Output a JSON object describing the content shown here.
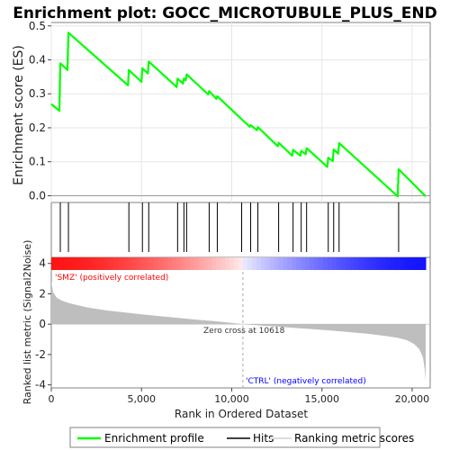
{
  "chart_data": {
    "type": "line",
    "title": "Enrichment plot: GOCC_MICROTUBULE_PLUS_END",
    "es_ylabel": "Enrichment score (ES)",
    "metric_ylabel": "Ranked list metric (Signal2Noise)",
    "xlabel": "Rank in Ordered Dataset",
    "xlim": [
      0,
      21000
    ],
    "es_ylim": [
      -0.02,
      0.51
    ],
    "metric_ylim": [
      -4.2,
      4.4
    ],
    "x_ticks": [
      "0",
      "5,000",
      "10,000",
      "15,000",
      "20,000"
    ],
    "x_tick_values": [
      0,
      5000,
      10000,
      15000,
      20000
    ],
    "es_ticks": [
      "0.0",
      "0.1",
      "0.2",
      "0.3",
      "0.4",
      "0.5"
    ],
    "es_tick_values": [
      0.0,
      0.1,
      0.2,
      0.3,
      0.4,
      0.5
    ],
    "metric_ticks": [
      "-4",
      "-2",
      "0",
      "2",
      "4"
    ],
    "metric_tick_values": [
      -4,
      -2,
      0,
      2,
      4
    ],
    "es_profile": {
      "x": [
        0,
        450,
        500,
        900,
        950,
        4250,
        4300,
        5000,
        5050,
        5350,
        5400,
        6950,
        7000,
        7300,
        7350,
        7450,
        7500,
        8700,
        8750,
        9150,
        9200,
        10550,
        11000,
        11050,
        11400,
        11450,
        12550,
        12600,
        13350,
        13400,
        13800,
        13850,
        14100,
        14150,
        15300,
        15350,
        15600,
        15650,
        15900,
        15950,
        19200,
        19250,
        20750
      ],
      "y": [
        0.27,
        0.25,
        0.39,
        0.37,
        0.48,
        0.325,
        0.37,
        0.335,
        0.375,
        0.36,
        0.395,
        0.32,
        0.345,
        0.33,
        0.345,
        0.34,
        0.357,
        0.298,
        0.308,
        0.285,
        0.293,
        0.225,
        0.203,
        0.208,
        0.193,
        0.202,
        0.146,
        0.156,
        0.118,
        0.135,
        0.118,
        0.132,
        0.122,
        0.14,
        0.085,
        0.112,
        0.102,
        0.136,
        0.124,
        0.155,
        -0.002,
        0.078,
        -0.002
      ]
    },
    "hits": [
      500,
      950,
      4300,
      5050,
      5400,
      7000,
      7350,
      7500,
      8750,
      9200,
      10550,
      11050,
      11450,
      12600,
      13400,
      13850,
      14150,
      15350,
      15650,
      15950,
      19250
    ],
    "metric_profile": {
      "x": [
        0,
        100,
        300,
        600,
        1000,
        2000,
        3000,
        4000,
        5000,
        6000,
        7000,
        8000,
        9000,
        10000,
        10618,
        11500,
        12500,
        13500,
        14500,
        15500,
        16500,
        17500,
        18500,
        19200,
        19700,
        20100,
        20400,
        20600,
        20700,
        20750
      ],
      "y": [
        2.8,
        2.1,
        1.75,
        1.55,
        1.38,
        1.1,
        0.92,
        0.78,
        0.65,
        0.53,
        0.42,
        0.3,
        0.2,
        0.08,
        0.0,
        -0.08,
        -0.16,
        -0.25,
        -0.33,
        -0.42,
        -0.52,
        -0.63,
        -0.78,
        -0.9,
        -1.05,
        -1.3,
        -1.65,
        -2.2,
        -3.0,
        -3.75
      ]
    },
    "zero_cross_rank": 10618,
    "zero_cross_label": "Zero cross at 10618",
    "pos_label": "'SMZ' (positively correlated)",
    "neg_label": "'CTRL' (negatively correlated)",
    "legend": [
      "Enrichment profile",
      "Hits",
      "Ranking metric scores"
    ],
    "legend_placement": "bottom",
    "colors": {
      "es_line": "#00ff00",
      "hits": "#000000",
      "metric_fill": "#bebebe",
      "pos_text": "#ff0000",
      "neg_text": "#0000ff",
      "heat_pos": "#ff0000",
      "heat_neg": "#0000ff"
    }
  }
}
